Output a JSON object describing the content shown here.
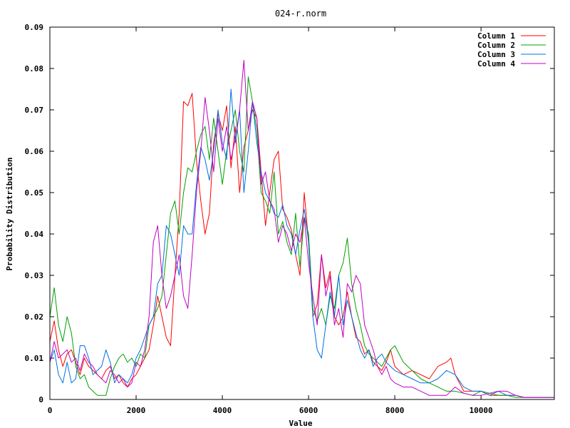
{
  "chart_data": {
    "type": "line",
    "title": "024-r.norm",
    "xlabel": "Value",
    "ylabel": "Probability Distribution",
    "xlim": [
      0,
      11700
    ],
    "ylim": [
      0,
      0.09
    ],
    "xticks": [
      "0",
      "2000",
      "4000",
      "6000",
      "8000",
      "10000"
    ],
    "yticks": [
      "0",
      "0.01",
      "0.02",
      "0.03",
      "0.04",
      "0.05",
      "0.06",
      "0.07",
      "0.08",
      "0.09"
    ],
    "grid": false,
    "legend_position": "top-right",
    "series": [
      {
        "name": "Column 1",
        "color": "#ff0000",
        "x": [
          0,
          100,
          200,
          300,
          400,
          500,
          600,
          700,
          800,
          900,
          1000,
          1100,
          1200,
          1300,
          1400,
          1500,
          1600,
          1700,
          1800,
          1900,
          2000,
          2100,
          2200,
          2300,
          2400,
          2500,
          2600,
          2700,
          2800,
          2900,
          3000,
          3100,
          3200,
          3300,
          3400,
          3500,
          3600,
          3700,
          3800,
          3900,
          4000,
          4100,
          4200,
          4300,
          4400,
          4500,
          4600,
          4700,
          4800,
          4900,
          5000,
          5100,
          5200,
          5300,
          5400,
          5500,
          5600,
          5700,
          5800,
          5900,
          6000,
          6100,
          6200,
          6300,
          6400,
          6500,
          6600,
          6700,
          6800,
          6900,
          7000,
          7100,
          7200,
          7300,
          7400,
          7500,
          7600,
          7700,
          7800,
          7900,
          8000,
          8200,
          8400,
          8600,
          8800,
          9000,
          9200,
          9300,
          9400,
          9600,
          9800,
          10000,
          10200,
          10400,
          10600,
          10800,
          11000,
          11200,
          11400,
          11700
        ],
        "y": [
          0.014,
          0.019,
          0.012,
          0.008,
          0.011,
          0.012,
          0.009,
          0.006,
          0.01,
          0.008,
          0.007,
          0.006,
          0.005,
          0.007,
          0.008,
          0.005,
          0.006,
          0.004,
          0.003,
          0.005,
          0.006,
          0.008,
          0.01,
          0.012,
          0.018,
          0.025,
          0.02,
          0.015,
          0.013,
          0.03,
          0.045,
          0.072,
          0.071,
          0.074,
          0.058,
          0.048,
          0.04,
          0.045,
          0.062,
          0.069,
          0.065,
          0.071,
          0.056,
          0.066,
          0.05,
          0.061,
          0.065,
          0.07,
          0.068,
          0.055,
          0.042,
          0.05,
          0.058,
          0.06,
          0.046,
          0.044,
          0.041,
          0.035,
          0.03,
          0.05,
          0.038,
          0.02,
          0.023,
          0.035,
          0.027,
          0.031,
          0.02,
          0.018,
          0.02,
          0.026,
          0.02,
          0.015,
          0.014,
          0.011,
          0.012,
          0.009,
          0.008,
          0.007,
          0.009,
          0.012,
          0.008,
          0.006,
          0.007,
          0.006,
          0.005,
          0.008,
          0.009,
          0.01,
          0.006,
          0.002,
          0.002,
          0.002,
          0.001,
          0.001,
          0.001,
          0.001,
          0.0005,
          0.0005,
          0.0005,
          0.0005
        ]
      },
      {
        "name": "Column 2",
        "color": "#00a000",
        "x": [
          0,
          100,
          200,
          300,
          400,
          500,
          600,
          700,
          800,
          900,
          1000,
          1100,
          1200,
          1300,
          1400,
          1500,
          1600,
          1700,
          1800,
          1900,
          2000,
          2100,
          2200,
          2300,
          2400,
          2500,
          2600,
          2700,
          2800,
          2900,
          3000,
          3100,
          3200,
          3300,
          3400,
          3500,
          3600,
          3700,
          3800,
          3900,
          4000,
          4100,
          4200,
          4300,
          4400,
          4500,
          4600,
          4700,
          4800,
          4900,
          5000,
          5100,
          5200,
          5300,
          5400,
          5500,
          5600,
          5700,
          5800,
          5900,
          6000,
          6100,
          6200,
          6300,
          6400,
          6500,
          6600,
          6700,
          6800,
          6900,
          7000,
          7100,
          7200,
          7300,
          7400,
          7500,
          7600,
          7700,
          7800,
          7900,
          8000,
          8200,
          8400,
          8600,
          8800,
          9000,
          9200,
          9400,
          9600,
          9800,
          10000,
          10200,
          10400,
          10600,
          10800,
          11000,
          11200,
          11400,
          11700
        ],
        "y": [
          0.02,
          0.027,
          0.018,
          0.014,
          0.02,
          0.016,
          0.008,
          0.005,
          0.006,
          0.003,
          0.002,
          0.001,
          0.001,
          0.001,
          0.005,
          0.008,
          0.01,
          0.011,
          0.009,
          0.01,
          0.008,
          0.011,
          0.01,
          0.018,
          0.02,
          0.022,
          0.025,
          0.035,
          0.045,
          0.048,
          0.04,
          0.05,
          0.056,
          0.055,
          0.06,
          0.064,
          0.066,
          0.058,
          0.068,
          0.06,
          0.052,
          0.06,
          0.065,
          0.07,
          0.06,
          0.055,
          0.078,
          0.072,
          0.065,
          0.05,
          0.048,
          0.045,
          0.055,
          0.04,
          0.043,
          0.038,
          0.035,
          0.045,
          0.032,
          0.044,
          0.04,
          0.022,
          0.019,
          0.022,
          0.018,
          0.025,
          0.022,
          0.03,
          0.033,
          0.039,
          0.028,
          0.022,
          0.018,
          0.013,
          0.011,
          0.01,
          0.009,
          0.008,
          0.01,
          0.012,
          0.013,
          0.009,
          0.007,
          0.005,
          0.004,
          0.003,
          0.002,
          0.002,
          0.0015,
          0.001,
          0.002,
          0.0015,
          0.001,
          0.001,
          0.0005,
          0.0005,
          0.0005,
          0.0005,
          0.0005
        ]
      },
      {
        "name": "Column 3",
        "color": "#0070e0",
        "x": [
          0,
          100,
          200,
          300,
          400,
          500,
          600,
          700,
          800,
          900,
          1000,
          1100,
          1200,
          1300,
          1400,
          1500,
          1600,
          1700,
          1800,
          1900,
          2000,
          2100,
          2200,
          2300,
          2400,
          2500,
          2600,
          2700,
          2800,
          2900,
          3000,
          3100,
          3200,
          3300,
          3400,
          3500,
          3600,
          3700,
          3800,
          3900,
          4000,
          4100,
          4200,
          4300,
          4400,
          4500,
          4600,
          4700,
          4800,
          4900,
          5000,
          5100,
          5200,
          5300,
          5400,
          5500,
          5600,
          5700,
          5800,
          5900,
          6000,
          6100,
          6200,
          6300,
          6400,
          6500,
          6600,
          6700,
          6800,
          6900,
          7000,
          7100,
          7200,
          7300,
          7400,
          7500,
          7600,
          7700,
          7800,
          7900,
          8000,
          8200,
          8400,
          8600,
          8800,
          9000,
          9200,
          9400,
          9600,
          9800,
          10000,
          10200,
          10400,
          10600,
          10800,
          11000,
          11200,
          11400,
          11700
        ],
        "y": [
          0.009,
          0.012,
          0.006,
          0.004,
          0.009,
          0.004,
          0.005,
          0.013,
          0.013,
          0.01,
          0.006,
          0.007,
          0.008,
          0.012,
          0.009,
          0.004,
          0.006,
          0.005,
          0.004,
          0.006,
          0.01,
          0.012,
          0.015,
          0.018,
          0.02,
          0.028,
          0.03,
          0.042,
          0.04,
          0.035,
          0.03,
          0.042,
          0.04,
          0.04,
          0.052,
          0.061,
          0.058,
          0.053,
          0.06,
          0.07,
          0.062,
          0.058,
          0.075,
          0.062,
          0.07,
          0.05,
          0.06,
          0.072,
          0.062,
          0.055,
          0.05,
          0.048,
          0.045,
          0.044,
          0.047,
          0.042,
          0.04,
          0.035,
          0.041,
          0.046,
          0.038,
          0.02,
          0.012,
          0.01,
          0.018,
          0.026,
          0.02,
          0.03,
          0.018,
          0.024,
          0.02,
          0.016,
          0.012,
          0.01,
          0.012,
          0.008,
          0.01,
          0.011,
          0.009,
          0.008,
          0.007,
          0.006,
          0.005,
          0.004,
          0.004,
          0.005,
          0.007,
          0.006,
          0.003,
          0.002,
          0.002,
          0.001,
          0.002,
          0.001,
          0.001,
          0.0005,
          0.0005,
          0.0005,
          0.0005
        ]
      },
      {
        "name": "Column 4",
        "color": "#c000c0",
        "x": [
          0,
          100,
          200,
          300,
          400,
          500,
          600,
          700,
          800,
          900,
          1000,
          1100,
          1200,
          1300,
          1400,
          1500,
          1600,
          1700,
          1800,
          1900,
          2000,
          2100,
          2200,
          2300,
          2400,
          2500,
          2600,
          2700,
          2800,
          2900,
          3000,
          3100,
          3200,
          3300,
          3400,
          3500,
          3600,
          3700,
          3800,
          3900,
          4000,
          4100,
          4200,
          4300,
          4400,
          4500,
          4600,
          4700,
          4800,
          4900,
          5000,
          5100,
          5200,
          5300,
          5400,
          5500,
          5600,
          5700,
          5800,
          5900,
          6000,
          6100,
          6200,
          6300,
          6400,
          6500,
          6600,
          6700,
          6800,
          6900,
          7000,
          7100,
          7200,
          7300,
          7400,
          7500,
          7600,
          7700,
          7800,
          7900,
          8000,
          8200,
          8400,
          8600,
          8800,
          9000,
          9200,
          9400,
          9600,
          9800,
          10000,
          10200,
          10400,
          10600,
          10800,
          11000,
          11200,
          11400,
          11700
        ],
        "y": [
          0.009,
          0.014,
          0.01,
          0.011,
          0.012,
          0.009,
          0.01,
          0.007,
          0.011,
          0.009,
          0.008,
          0.006,
          0.005,
          0.004,
          0.007,
          0.006,
          0.004,
          0.005,
          0.003,
          0.004,
          0.009,
          0.008,
          0.012,
          0.02,
          0.038,
          0.042,
          0.03,
          0.022,
          0.025,
          0.03,
          0.035,
          0.025,
          0.022,
          0.035,
          0.05,
          0.06,
          0.073,
          0.065,
          0.055,
          0.068,
          0.06,
          0.066,
          0.058,
          0.063,
          0.07,
          0.082,
          0.065,
          0.072,
          0.068,
          0.052,
          0.055,
          0.048,
          0.046,
          0.038,
          0.042,
          0.04,
          0.036,
          0.04,
          0.038,
          0.044,
          0.033,
          0.025,
          0.018,
          0.035,
          0.025,
          0.03,
          0.018,
          0.022,
          0.015,
          0.028,
          0.026,
          0.03,
          0.028,
          0.018,
          0.015,
          0.012,
          0.008,
          0.006,
          0.008,
          0.005,
          0.004,
          0.003,
          0.003,
          0.002,
          0.001,
          0.001,
          0.001,
          0.003,
          0.0015,
          0.001,
          0.001,
          0.0015,
          0.002,
          0.002,
          0.001,
          0.0005,
          0.0005,
          0.0005,
          0.0005
        ]
      }
    ]
  }
}
